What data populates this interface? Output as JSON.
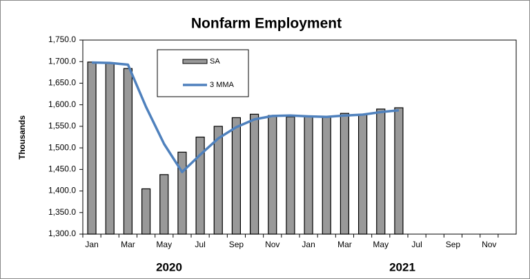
{
  "chart_data": {
    "type": "bar_line",
    "title": "Nonfarm Employment",
    "y_label": "Thousands",
    "year_labels": [
      "2020",
      "2021"
    ],
    "categories": [
      "Jan",
      null,
      "Mar",
      null,
      "May",
      null,
      "Jul",
      null,
      "Sep",
      null,
      "Nov",
      null,
      "Jan",
      null,
      "Mar",
      null,
      "May",
      null,
      "Jul",
      null,
      "Sep",
      null,
      "Nov",
      null
    ],
    "series": [
      {
        "name": "SA",
        "type": "bar",
        "color": "#999999",
        "values": [
          1699,
          1697,
          1684,
          1405,
          1438,
          1490,
          1525,
          1550,
          1570,
          1578,
          1575,
          1572,
          1572,
          1572,
          1580,
          1578,
          1590,
          1593,
          null,
          null,
          null,
          null,
          null,
          null
        ]
      },
      {
        "name": "3 MMA",
        "type": "line",
        "color": "#4f81bd",
        "values": [
          1698,
          1697,
          1693,
          1595,
          1509,
          1444,
          1484,
          1522,
          1548,
          1566,
          1574,
          1575,
          1573,
          1572,
          1575,
          1577,
          1583,
          1587,
          null,
          null,
          null,
          null,
          null,
          null
        ]
      }
    ],
    "ylim": [
      1300,
      1750
    ],
    "yticks": [
      {
        "value": 1300,
        "label": "1,300.0"
      },
      {
        "value": 1350,
        "label": "1,350.0"
      },
      {
        "value": 1400,
        "label": "1,400.0"
      },
      {
        "value": 1450,
        "label": "1,450.0"
      },
      {
        "value": 1500,
        "label": "1,500.0"
      },
      {
        "value": 1550,
        "label": "1,550.0"
      },
      {
        "value": 1600,
        "label": "1,600.0"
      },
      {
        "value": 1650,
        "label": "1,650.0"
      },
      {
        "value": 1700,
        "label": "1,700.0"
      },
      {
        "value": 1750,
        "label": "1,750.0"
      }
    ],
    "grid": false
  }
}
